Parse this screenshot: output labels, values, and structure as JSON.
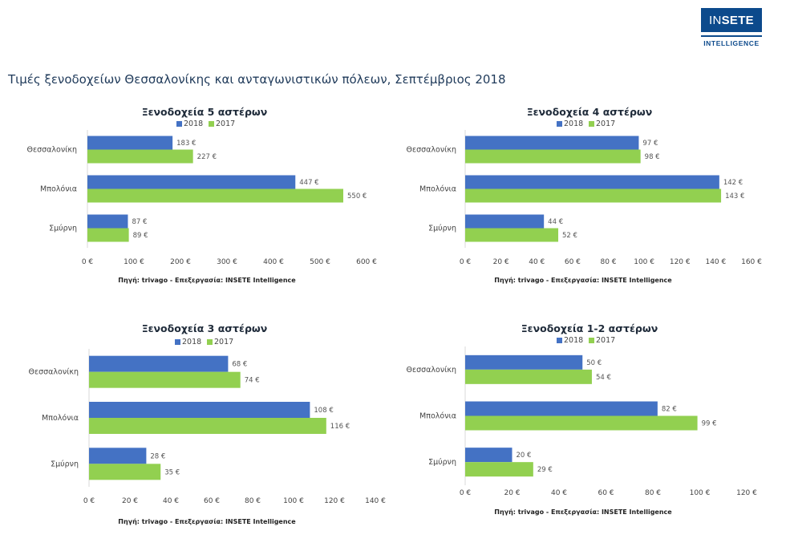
{
  "logo": {
    "text_light": "IN",
    "text_bold": "SETE",
    "subtitle": "INTELLIGENCE"
  },
  "page_title": "Τιμές ξενοδοχείων Θεσσαλονίκης και ανταγωνιστικών πόλεων, Σεπτέμβριος 2018",
  "colors": {
    "s2018": "#4472c4",
    "s2017": "#92d050"
  },
  "chart_data": [
    {
      "type": "bar",
      "orientation": "horizontal",
      "title": "Ξενοδοχεία 5 αστέρων",
      "categories": [
        "Θεσσαλονίκη",
        "Μπολόνια",
        "Σμύρνη"
      ],
      "series": [
        {
          "name": "2018",
          "values": [
            183,
            447,
            87
          ],
          "labels": [
            "183 €",
            "447 €",
            "87 €"
          ]
        },
        {
          "name": "2017",
          "values": [
            227,
            550,
            89
          ],
          "labels": [
            "227 €",
            "550 €",
            "89 €"
          ]
        }
      ],
      "xlim": [
        0,
        600
      ],
      "ticks": [
        0,
        100,
        200,
        300,
        400,
        500,
        600
      ],
      "tick_labels": [
        "0 €",
        "100 €",
        "200 €",
        "300 €",
        "400 €",
        "500 €",
        "600 €"
      ],
      "source": "Πηγή: trivago - Επεξεργασία: INSETE Intelligence"
    },
    {
      "type": "bar",
      "orientation": "horizontal",
      "title": "Ξενοδοχεία 4 αστέρων",
      "categories": [
        "Θεσσαλονίκη",
        "Μπολόνια",
        "Σμύρνη"
      ],
      "series": [
        {
          "name": "2018",
          "values": [
            97,
            142,
            44
          ],
          "labels": [
            "97 €",
            "142 €",
            "44 €"
          ]
        },
        {
          "name": "2017",
          "values": [
            98,
            143,
            52
          ],
          "labels": [
            "98 €",
            "143 €",
            "52 €"
          ]
        }
      ],
      "xlim": [
        0,
        160
      ],
      "ticks": [
        0,
        20,
        40,
        60,
        80,
        100,
        120,
        140,
        160
      ],
      "tick_labels": [
        "0 €",
        "20 €",
        "40 €",
        "60 €",
        "80 €",
        "100 €",
        "120 €",
        "140 €",
        "160 €"
      ],
      "source": "Πηγή: trivago - Επεξεργασία: INSETE Intelligence"
    },
    {
      "type": "bar",
      "orientation": "horizontal",
      "title": "Ξενοδοχεία 3 αστέρων",
      "categories": [
        "Θεσσαλονίκη",
        "Μπολόνια",
        "Σμύρνη"
      ],
      "series": [
        {
          "name": "2018",
          "values": [
            68,
            108,
            28
          ],
          "labels": [
            "68 €",
            "108 €",
            "28 €"
          ]
        },
        {
          "name": "2017",
          "values": [
            74,
            116,
            35
          ],
          "labels": [
            "74 €",
            "116 €",
            "35 €"
          ]
        }
      ],
      "xlim": [
        0,
        140
      ],
      "ticks": [
        0,
        20,
        40,
        60,
        80,
        100,
        120,
        140
      ],
      "tick_labels": [
        "0 €",
        "20 €",
        "40 €",
        "60 €",
        "80 €",
        "100 €",
        "120 €",
        "140 €"
      ],
      "source": "Πηγή: trivago - Επεξεργασία: INSETE Intelligence"
    },
    {
      "type": "bar",
      "orientation": "horizontal",
      "title": "Ξενοδοχεία 1-2 αστέρων",
      "categories": [
        "Θεσσαλονίκη",
        "Μπολόνια",
        "Σμύρνη"
      ],
      "series": [
        {
          "name": "2018",
          "values": [
            50,
            82,
            20
          ],
          "labels": [
            "50 €",
            "82 €",
            "20 €"
          ]
        },
        {
          "name": "2017",
          "values": [
            54,
            99,
            29
          ],
          "labels": [
            "54 €",
            "99 €",
            "29 €"
          ]
        }
      ],
      "xlim": [
        0,
        120
      ],
      "ticks": [
        0,
        20,
        40,
        60,
        80,
        100,
        120
      ],
      "tick_labels": [
        "0 €",
        "20 €",
        "40 €",
        "60 €",
        "80 €",
        "100 €",
        "120 €"
      ],
      "source": "Πηγή: trivago - Επεξεργασία: INSETE Intelligence"
    }
  ]
}
